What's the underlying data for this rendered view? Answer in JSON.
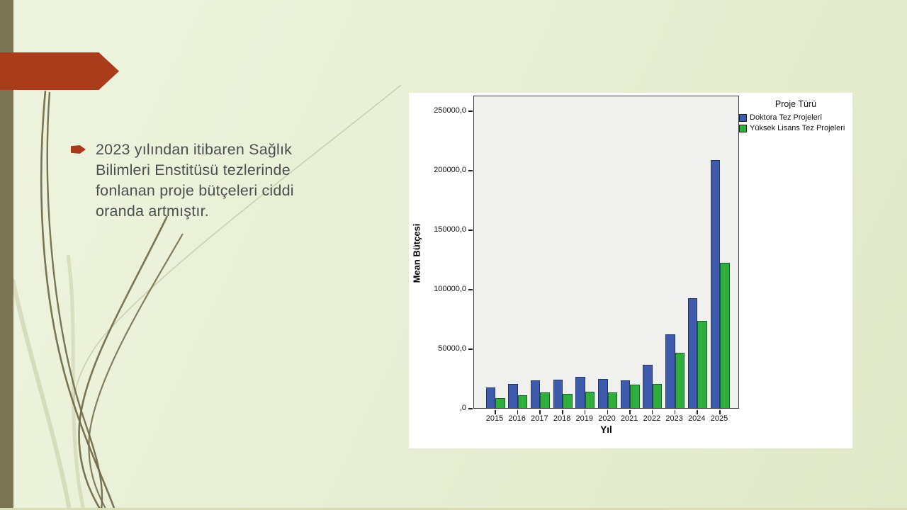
{
  "slide": {
    "bullet_text": "2023 yılından itibaren Sağlık Bilimleri Enstitüsü tezlerinde fonlanan proje bütçeleri ciddi oranda artmıştır."
  },
  "colors": {
    "background_light": "#eef3de",
    "background_dark": "#e0e9c8",
    "left_edge_bar": "#7b7455",
    "accent_arrow": "#a93c1b",
    "body_text": "#4e4e4e",
    "chart_panel": "#ffffff",
    "plot_background": "#f0f0ee",
    "doktora_blue": "#3d5baa",
    "yuksek_green": "#2fae3e"
  },
  "chart_data": {
    "type": "bar",
    "title": "",
    "legend_title": "Proje Türü",
    "legend_position": "top-right-outside",
    "grid": false,
    "xlabel": "Yıl",
    "ylabel": "Mean Bütçesi",
    "categories": [
      "2015",
      "2016",
      "2017",
      "2018",
      "2019",
      "2020",
      "2021",
      "2022",
      "2023",
      "2024",
      "2025"
    ],
    "series": [
      {
        "name": "Doktora Tez Projeleri",
        "color": "#3d5baa",
        "border_color": "#26366b",
        "values": [
          17500,
          20000,
          23000,
          24000,
          26000,
          24500,
          23000,
          36000,
          62000,
          92000,
          208000
        ]
      },
      {
        "name": "Yüksek Lisans Tez Projeleri",
        "color": "#2fae3e",
        "border_color": "#17642a",
        "values": [
          8500,
          11000,
          13000,
          12000,
          13500,
          13000,
          19500,
          20500,
          46500,
          73000,
          122000
        ]
      }
    ],
    "ylim": [
      0,
      263000
    ],
    "yticks": {
      "values": [
        0,
        50000,
        100000,
        150000,
        200000,
        250000
      ],
      "labels": [
        ",0",
        "50000,0",
        "100000,0",
        "150000,0",
        "200000,0",
        "250000,0"
      ]
    }
  }
}
